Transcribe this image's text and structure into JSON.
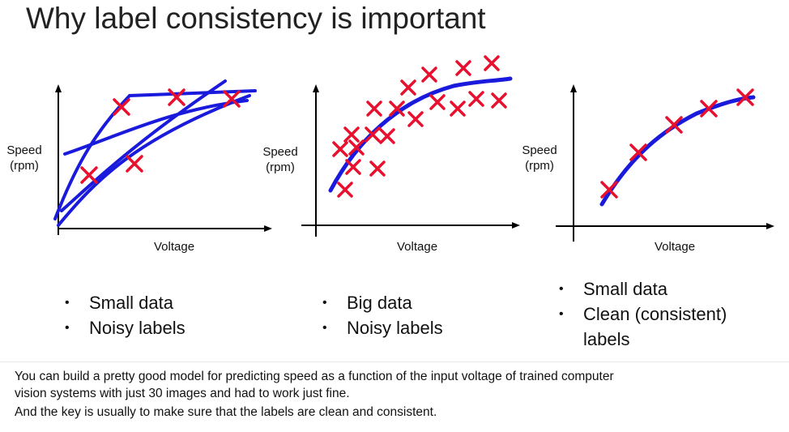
{
  "slide": {
    "title": "Why label consistency is important",
    "charts": [
      {
        "ylabel_line1": "Speed",
        "ylabel_line2": "(rpm)",
        "xlabel": "Voltage",
        "bullets": [
          "Small data",
          "Noisy labels"
        ]
      },
      {
        "ylabel_line1": "Speed",
        "ylabel_line2": "(rpm)",
        "xlabel": "Voltage",
        "bullets": [
          "Big data",
          "Noisy labels"
        ]
      },
      {
        "ylabel_line1": "Speed",
        "ylabel_line2": "(rpm)",
        "xlabel": "Voltage",
        "bullets": [
          "Small data",
          "Clean (consistent)",
          "labels"
        ]
      }
    ],
    "colors": {
      "points": "#e8102e",
      "curve": "#1a1adc",
      "axes": "#000000"
    }
  },
  "caption": {
    "line1": "You can build a pretty good model for predicting speed as a function of the input voltage of trained computer",
    "line2": "vision systems with just 30 images and had to work just fine.",
    "line3": "And the key is usually to make sure that the labels are clean and consistent."
  }
}
